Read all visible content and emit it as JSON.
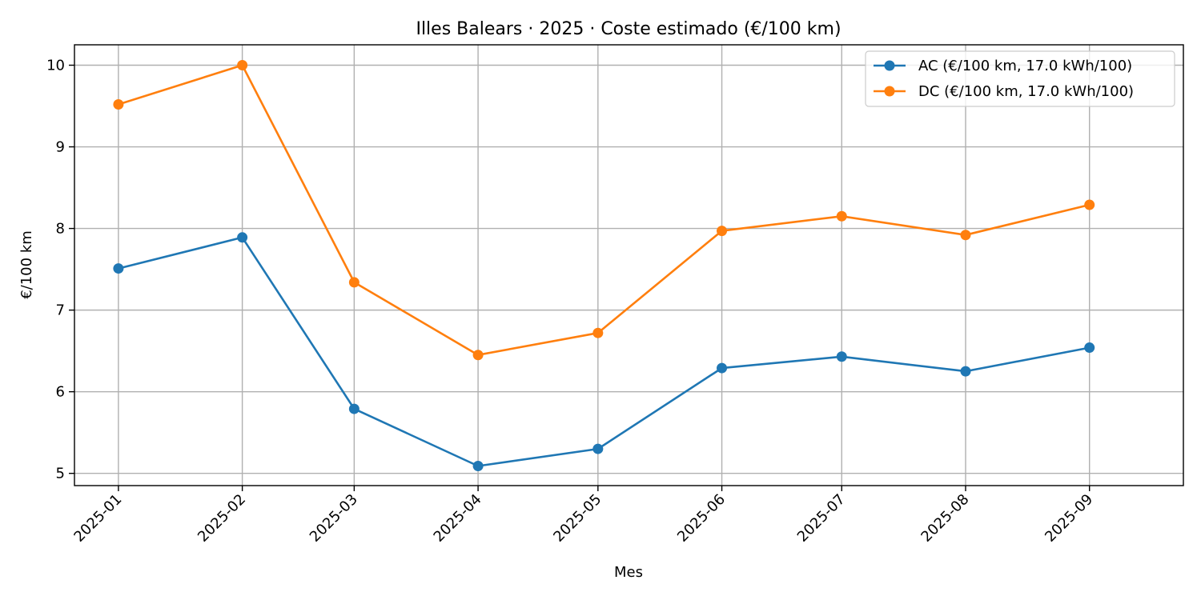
{
  "chart_data": {
    "type": "line",
    "title": "Illes Balears · 2025 · Coste estimado (€/100 km)",
    "xlabel": "Mes",
    "ylabel": "€/100 km",
    "categories": [
      "2025-01",
      "2025-02",
      "2025-03",
      "2025-04",
      "2025-05",
      "2025-06",
      "2025-07",
      "2025-08",
      "2025-09"
    ],
    "x_values": [
      1,
      2,
      3,
      4,
      5,
      6,
      7,
      8,
      9
    ],
    "x_days": [
      1,
      32,
      60,
      91,
      121,
      152,
      182,
      213,
      244
    ],
    "ylim": [
      4.85,
      10.25
    ],
    "yticks": [
      5,
      6,
      7,
      8,
      9,
      10
    ],
    "grid": true,
    "legend_position": "top-right",
    "series": [
      {
        "name": "AC (€/100 km, 17.0 kWh/100)",
        "color": "#1f77b4",
        "marker": "circle",
        "values": [
          7.51,
          7.89,
          5.79,
          5.09,
          5.3,
          6.29,
          6.43,
          6.25,
          6.54
        ]
      },
      {
        "name": "DC (€/100 km, 17.0 kWh/100)",
        "color": "#ff7f0e",
        "marker": "circle",
        "values": [
          9.52,
          10.0,
          7.34,
          6.45,
          6.72,
          7.97,
          8.15,
          7.92,
          8.29
        ]
      }
    ]
  }
}
